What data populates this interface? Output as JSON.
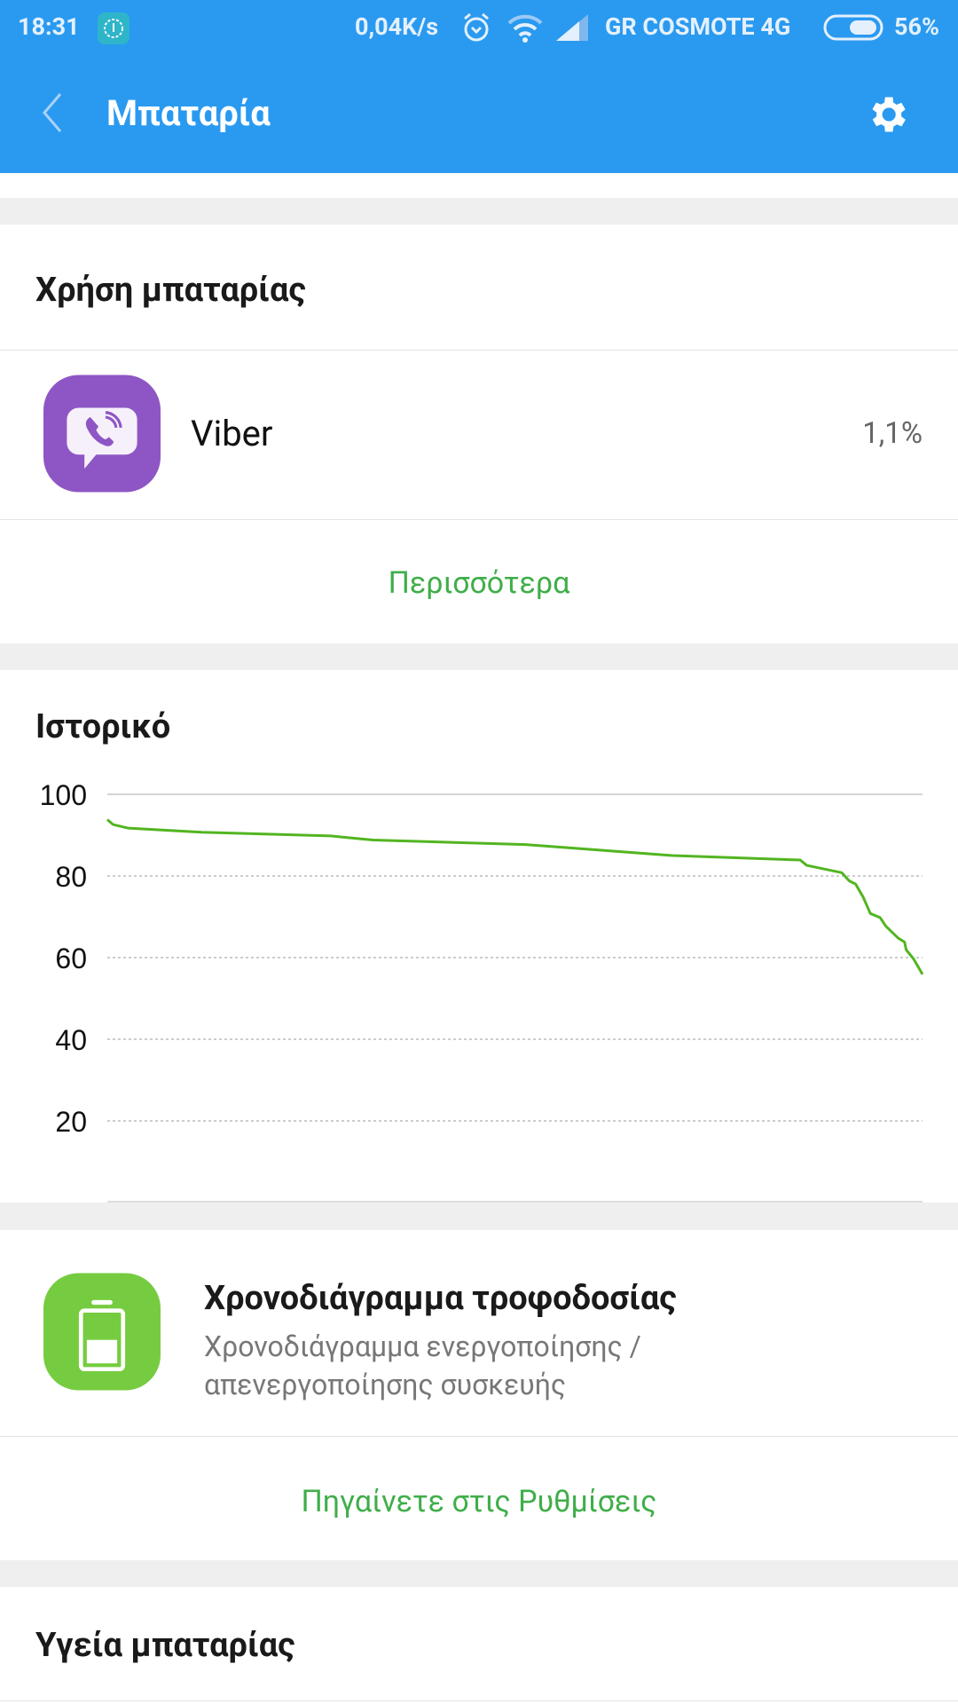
{
  "status_bar": {
    "time": "18:31",
    "net_speed": "0,04K/s",
    "carrier": "GR COSMOTE 4G",
    "battery": "56%",
    "battery_level": 56,
    "icons": [
      "shield-app-icon",
      "alarm-icon",
      "wifi-icon",
      "signal-icon",
      "battery-icon"
    ]
  },
  "app_bar": {
    "title": "Μπαταρία",
    "back_icon": "chevron-left-icon",
    "settings_icon": "gear-icon",
    "color": "#2A9AF0"
  },
  "usage": {
    "title": "Χρήση μπαταρίας",
    "apps": [
      {
        "name": "Viber",
        "percent": "1,1%",
        "icon": "viber-icon",
        "color": "#8E56C4"
      }
    ],
    "more_label": "Περισσότερα"
  },
  "history": {
    "title": "Ιστορικό"
  },
  "schedule": {
    "title": "Χρονοδιάγραμμα τροφοδοσίας",
    "subtitle_line1": "Χρονοδιάγραμμα ενεργοποίησης /",
    "subtitle_line2": "απενεργοποίησης συσκευής",
    "icon": "battery-icon",
    "color": "#76CC40",
    "link_label": "Πηγαίνετε στις Ρυθμίσεις"
  },
  "health": {
    "title": "Υγεία μπαταρίας"
  },
  "accent_green": "#3fae49",
  "chart_data": {
    "type": "line",
    "title": "",
    "xlabel": "",
    "ylabel": "",
    "ylim": [
      0,
      100
    ],
    "yticks": [
      "100",
      "80",
      "60",
      "40",
      "20"
    ],
    "grid": true,
    "line_color": "#52b520",
    "x": [
      0,
      0.7,
      2.6,
      11.6,
      27.4,
      32.6,
      51.3,
      56.6,
      69.3,
      85,
      85.8,
      90.1,
      91,
      91.8,
      92.7,
      93.6,
      94.8,
      95.5,
      97,
      97.8,
      98,
      98.9,
      100
    ],
    "values": [
      93.8,
      92.6,
      91.7,
      90.7,
      89.8,
      88.8,
      87.7,
      86.9,
      85,
      83.9,
      82.6,
      80.8,
      78.8,
      78,
      74.9,
      70.8,
      69.8,
      67.7,
      64.8,
      63.8,
      61.9,
      59.7,
      55.9
    ]
  }
}
